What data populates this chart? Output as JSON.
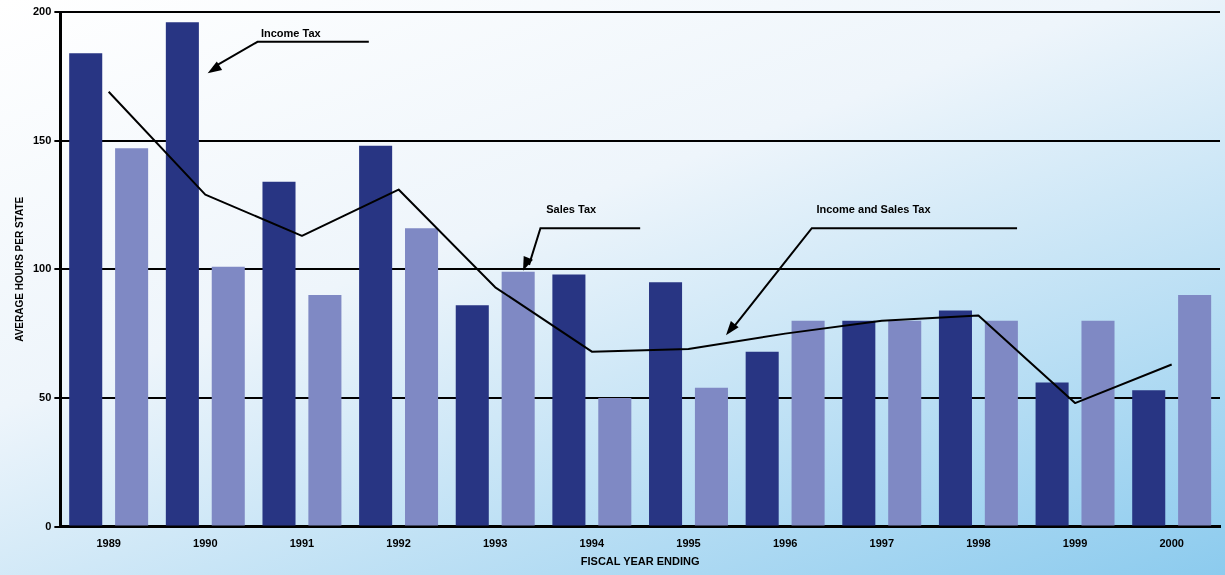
{
  "chart_data": {
    "type": "bar",
    "xlabel": "FISCAL YEAR ENDING",
    "ylabel": "AVERAGE HOURS PER STATE",
    "categories": [
      "1989",
      "1990",
      "1991",
      "1992",
      "1993",
      "1994",
      "1995",
      "1996",
      "1997",
      "1998",
      "1999",
      "2000"
    ],
    "series": [
      {
        "color": "#283583",
        "values": [
          184,
          196,
          134,
          148,
          86,
          98,
          95,
          68,
          80,
          84,
          56,
          53
        ]
      },
      {
        "color": "#7f89c4",
        "values": [
          147,
          101,
          90,
          116,
          99,
          50,
          54,
          80,
          80,
          80,
          80,
          90
        ]
      },
      {
        "type": "line",
        "color": "#000000",
        "values": [
          169,
          129,
          113,
          131,
          93,
          68,
          69,
          75,
          80,
          82,
          48,
          63
        ]
      }
    ],
    "ylim": [
      0,
      200
    ],
    "yticks": [
      0,
      50,
      100,
      150,
      200
    ],
    "grid": "y",
    "legend": false,
    "marker": "none",
    "line_style": "solid",
    "annotations": [
      "Income Tax",
      "Sales Tax",
      "Income and Sales Tax"
    ]
  }
}
